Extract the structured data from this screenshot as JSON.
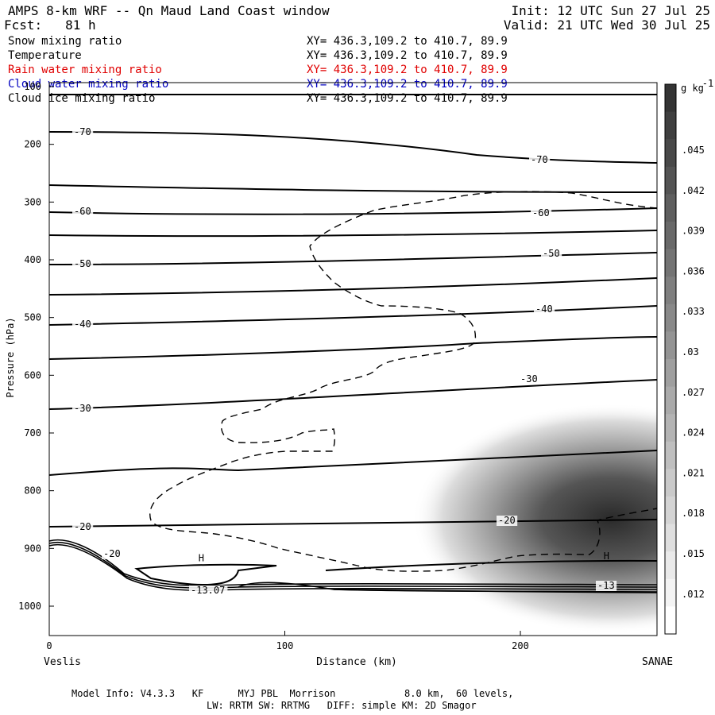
{
  "header": {
    "title": "AMPS 8-km WRF -- Qn Maud Land Coast window",
    "fcst": "Fcst:   81 h",
    "init": "Init: 12 UTC Sun 27 Jul 25",
    "valid": "Valid: 21 UTC Wed 30 Jul 25"
  },
  "fields": [
    {
      "name": "Snow mixing ratio",
      "xy": "XY= 436.3,109.2 to 410.7, 89.9",
      "color": "#000000"
    },
    {
      "name": "Temperature",
      "xy": "XY= 436.3,109.2 to 410.7, 89.9",
      "color": "#000000"
    },
    {
      "name": "Rain water mixing ratio",
      "xy": "XY= 436.3,109.2 to 410.7, 89.9",
      "color": "#e00000"
    },
    {
      "name": "Cloud water mixing ratio",
      "xy": "XY= 436.3,109.2 to 410.7, 89.9",
      "color": "#0000c0"
    },
    {
      "name": "Cloud ice mixing ratio",
      "xy": "XY= 436.3,109.2 to 410.7, 89.9",
      "color": "#000000"
    }
  ],
  "chart_data": {
    "type": "contour",
    "xlabel": "Distance (km)",
    "ylabel": "Pressure (hPa)",
    "xlim": [
      0,
      258
    ],
    "ylim": [
      1050,
      100
    ],
    "x_ticks": [
      0,
      100,
      200
    ],
    "y_ticks": [
      100,
      200,
      300,
      400,
      500,
      600,
      700,
      800,
      900,
      1000
    ],
    "x_endpoints": {
      "left": "Veslis",
      "right": "SANAE"
    },
    "colorbar": {
      "unit": "g kg",
      "unit_exponent": "-1",
      "ticks": [
        ".045",
        ".042",
        ".039",
        ".036",
        ".033",
        ".03",
        ".027",
        ".024",
        ".021",
        ".018",
        ".015",
        ".012"
      ],
      "min": 0.009,
      "max": 0.048
    },
    "temperature_isotherms_labeled": [
      {
        "label": "-70",
        "positions": [
          [
            10,
            180
          ],
          [
            210,
            213
          ]
        ]
      },
      {
        "label": "-60",
        "positions": [
          [
            10,
            315
          ],
          [
            210,
            329
          ]
        ]
      },
      {
        "label": "-50",
        "positions": [
          [
            10,
            405
          ],
          [
            210,
            428
          ]
        ]
      },
      {
        "label": "-40",
        "positions": [
          [
            10,
            510
          ],
          [
            210,
            518
          ]
        ]
      },
      {
        "label": "-30",
        "positions": [
          [
            10,
            655
          ],
          [
            210,
            636
          ]
        ]
      },
      {
        "label": "-20",
        "positions": [
          [
            10,
            862
          ],
          [
            195,
            853
          ]
        ]
      },
      {
        "label": "-13",
        "positions": [
          [
            237,
            960
          ]
        ]
      },
      {
        "label": "-13.07",
        "positions": [
          [
            65,
            962
          ]
        ]
      },
      {
        "label": "-20",
        "positions": [
          [
            26,
            925
          ]
        ]
      }
    ],
    "high_markers": [
      {
        "label": "H",
        "x": 65,
        "p": 933
      },
      {
        "label": "H",
        "x": 237,
        "p": 930
      }
    ],
    "snow_max_region": {
      "x_center": 230,
      "p_center": 855,
      "value_max": 0.046
    }
  },
  "footer": {
    "line1": "Model Info: V4.3.3   KF      MYJ PBL  Morrison            8.0 km,  60 levels,",
    "line2": "LW: RRTM SW: RRTMG   DIFF: simple KM: 2D Smagor"
  }
}
